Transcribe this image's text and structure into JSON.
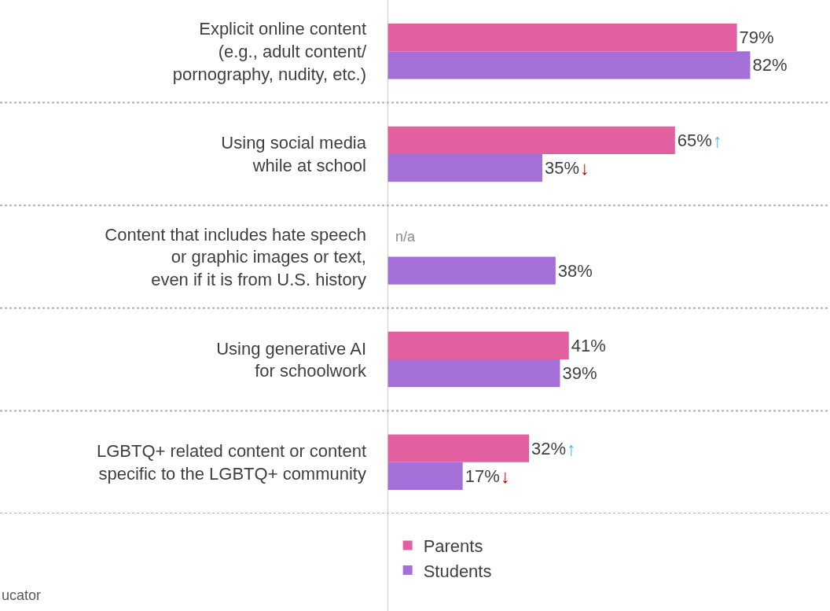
{
  "chart_data": {
    "type": "bar",
    "orientation": "horizontal",
    "categories": [
      "Explicit online content\n(e.g., adult content/\npornography, nudity, etc.)",
      "Using social media\nwhile at school",
      "Content that includes hate speech\nor graphic images or text,\neven if it is from U.S. history",
      "Using generative AI\nfor schoolwork",
      "LGBTQ+ related content or content\nspecific to the LGBTQ+ community"
    ],
    "series": [
      {
        "name": "Parents",
        "color": "#e2609f",
        "values": [
          79,
          65,
          null,
          41,
          32
        ],
        "value_labels": [
          "79%",
          "65%",
          "n/a",
          "41%",
          "32%"
        ]
      },
      {
        "name": "Students",
        "color": "#a56fd8",
        "values": [
          82,
          35,
          38,
          39,
          17
        ],
        "value_labels": [
          "82%",
          "35%",
          "38%",
          "39%",
          "17%"
        ]
      }
    ],
    "annotations": [
      {
        "text": "↑",
        "x": 65,
        "y": "Using social media\nwhile at school"
      },
      {
        "text": "↓",
        "x": 35,
        "y": "Using social media\nwhile at school"
      },
      {
        "text": "↑",
        "x": 32,
        "y": "LGBTQ+ related content or content\nspecific to the LGBTQ+ community"
      },
      {
        "text": "↓",
        "x": 17,
        "y": "LGBTQ+ related content or content\nspecific to the LGBTQ+ community"
      },
      "ucator"
    ],
    "legend": "bottom left",
    "grid": false
  }
}
